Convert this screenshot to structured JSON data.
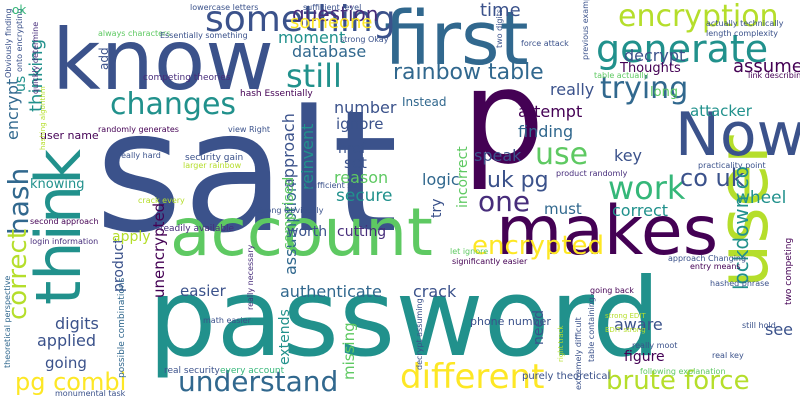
{
  "palette": {
    "navy": "#3b528b",
    "purple": "#440154",
    "teal": "#21918c",
    "blue": "#31688e",
    "green": "#5ec962",
    "lime": "#b5de2b",
    "yellow": "#fde725",
    "deep": "#472d7b",
    "sea": "#35b779",
    "cyan": "#26828e"
  },
  "words": [
    "salt",
    "password",
    "know",
    "first",
    "account",
    "makes",
    "p",
    "user",
    "Now",
    "think",
    "generate",
    "something",
    "encryption",
    "changes",
    "still",
    "use",
    "different",
    "understand",
    "encrypted",
    "work",
    "trying",
    "rainbow table",
    "brute force",
    "one",
    "hash",
    "correct",
    "pg combi",
    "uk pg",
    "co uk",
    "lockdown co",
    "question",
    "someone",
    "time",
    "decrypt",
    "assume",
    "Thoughts",
    "database",
    "moment",
    "thinking",
    "number",
    "ignore",
    "attempt",
    "attacker",
    "really",
    "Instead",
    "finding",
    "key",
    "speak",
    "href",
    "logic",
    "set",
    "reason",
    "secure",
    "must",
    "correct",
    "wheel",
    "assumption",
    "approach",
    "reinvent",
    "comprised",
    "product",
    "apply",
    "unencrypted",
    "cutting",
    "worth",
    "authenticate",
    "crack",
    "aware",
    "easier",
    "digits",
    "applied",
    "going",
    "extends",
    "missing",
    "need",
    "see",
    "figure",
    "incorrect",
    "encrypt",
    "knowing",
    "long",
    "try",
    "add",
    "user name",
    "phone number",
    "security gain",
    "possible combinations",
    "purely theoretical",
    "real security",
    "every account",
    "monumental task",
    "theoretical perspective",
    "login information",
    "sufficient level",
    "lowercase letters",
    "always characters",
    "Essentially something",
    "competing theories",
    "hash Essentially",
    "randomly generates",
    "view Right",
    "really hard",
    "larger rainbow",
    "sufficient size",
    "strong Obviously",
    "readily available",
    "second approach",
    "crack every",
    "math easier",
    "really necessary",
    "decrypt assuming",
    "real key",
    "extremely difficult",
    "table containing",
    "following explanation",
    "hashed phrase",
    "two competing",
    "approach Changing",
    "entry means",
    "let ignore",
    "significantly easier",
    "still hold",
    "really moot",
    "going back",
    "practicality point",
    "product randomly",
    "link describing",
    "table actually",
    "two digits",
    "force attack",
    "previous example",
    "actually technically",
    "length complexity",
    "quickly determine",
    "Obviously finding",
    "onto encrypting",
    "strong Okay",
    "strong EDIT",
    "EDIT strong",
    "right track",
    "hashing algorithm",
    "us",
    "ok"
  ]
}
